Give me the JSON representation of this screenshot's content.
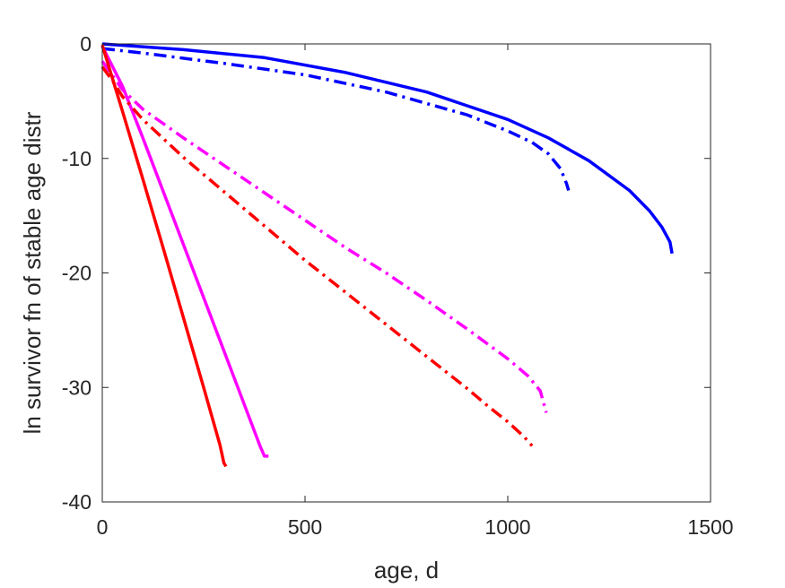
{
  "chart_data": {
    "type": "line",
    "title": "",
    "xlabel": "age, d",
    "ylabel": "ln survivor fn of stable age distr",
    "xlim": [
      0,
      1500
    ],
    "ylim": [
      -40,
      0
    ],
    "xticks": [
      0,
      500,
      1000,
      1500
    ],
    "yticks": [
      0,
      -10,
      -20,
      -30,
      -40
    ],
    "xtick_labels": [
      "0",
      "500",
      "1000",
      "1500"
    ],
    "ytick_labels": [
      "0",
      "-10",
      "-20",
      "-30",
      "-40"
    ],
    "grid": false,
    "box": true,
    "series": [
      {
        "color": "#0000ff",
        "style": "solid",
        "points": [
          [
            0,
            0
          ],
          [
            200,
            -0.5
          ],
          [
            400,
            -1.2
          ],
          [
            600,
            -2.5
          ],
          [
            800,
            -4.2
          ],
          [
            1000,
            -6.6
          ],
          [
            1100,
            -8.2
          ],
          [
            1200,
            -10.2
          ],
          [
            1300,
            -12.8
          ],
          [
            1350,
            -14.6
          ],
          [
            1380,
            -16.0
          ],
          [
            1400,
            -17.3
          ],
          [
            1405,
            -18.3
          ]
        ]
      },
      {
        "color": "#0000ff",
        "style": "dashdot",
        "points": [
          [
            0,
            -0.4
          ],
          [
            100,
            -0.8
          ],
          [
            300,
            -1.7
          ],
          [
            500,
            -2.7
          ],
          [
            700,
            -4.2
          ],
          [
            900,
            -6.2
          ],
          [
            1000,
            -7.6
          ],
          [
            1060,
            -8.6
          ],
          [
            1100,
            -9.6
          ],
          [
            1130,
            -10.9
          ],
          [
            1145,
            -12.2
          ],
          [
            1150,
            -12.8
          ]
        ]
      },
      {
        "color": "#ff00ff",
        "style": "solid",
        "points": [
          [
            0,
            -0.2
          ],
          [
            50,
            -3.7
          ],
          [
            100,
            -8.2
          ],
          [
            200,
            -17.5
          ],
          [
            300,
            -26.8
          ],
          [
            390,
            -35.2
          ],
          [
            400,
            -36.0
          ],
          [
            410,
            -36.0
          ]
        ]
      },
      {
        "color": "#ff00ff",
        "style": "dashdot",
        "points": [
          [
            0,
            -1.5
          ],
          [
            50,
            -4.0
          ],
          [
            100,
            -5.7
          ],
          [
            200,
            -8.2
          ],
          [
            300,
            -10.6
          ],
          [
            400,
            -13.0
          ],
          [
            500,
            -15.4
          ],
          [
            600,
            -17.8
          ],
          [
            700,
            -20.0
          ],
          [
            800,
            -22.4
          ],
          [
            900,
            -24.9
          ],
          [
            1000,
            -27.5
          ],
          [
            1050,
            -29.0
          ],
          [
            1080,
            -30.3
          ],
          [
            1095,
            -32.2
          ]
        ]
      },
      {
        "color": "#ff0000",
        "style": "solid",
        "points": [
          [
            0,
            -0.1
          ],
          [
            50,
            -5.9
          ],
          [
            100,
            -11.8
          ],
          [
            150,
            -17.8
          ],
          [
            200,
            -23.9
          ],
          [
            250,
            -30.0
          ],
          [
            290,
            -35.0
          ],
          [
            300,
            -36.6
          ],
          [
            305,
            -36.9
          ]
        ]
      },
      {
        "color": "#ff0000",
        "style": "dashdot",
        "points": [
          [
            0,
            -2.0
          ],
          [
            25,
            -3.2
          ],
          [
            50,
            -4.6
          ],
          [
            100,
            -6.6
          ],
          [
            200,
            -9.9
          ],
          [
            300,
            -12.9
          ],
          [
            400,
            -15.9
          ],
          [
            500,
            -18.9
          ],
          [
            600,
            -21.7
          ],
          [
            700,
            -24.5
          ],
          [
            800,
            -27.3
          ],
          [
            900,
            -30.1
          ],
          [
            950,
            -31.6
          ],
          [
            1000,
            -33.0
          ],
          [
            1040,
            -34.3
          ],
          [
            1060,
            -35.1
          ]
        ]
      }
    ]
  }
}
